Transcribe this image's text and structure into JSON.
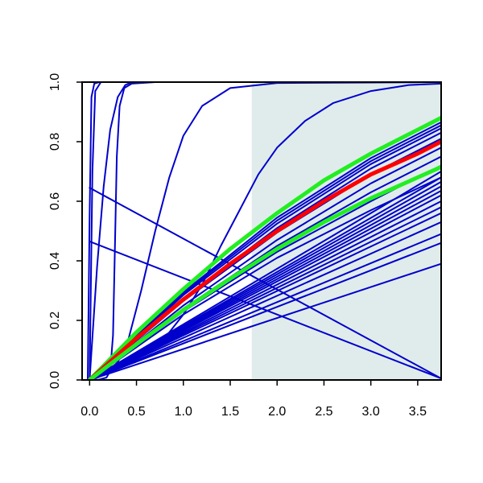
{
  "chart_data": {
    "type": "line",
    "title": "",
    "xlabel": "",
    "ylabel": "",
    "xlim": [
      -0.08,
      3.75
    ],
    "ylim": [
      0,
      1
    ],
    "xticks": [
      0.0,
      0.5,
      1.0,
      1.5,
      2.0,
      2.5,
      3.0,
      3.5
    ],
    "xtick_labels": [
      "0.0",
      "0.5",
      "1.0",
      "1.5",
      "2.0",
      "2.5",
      "3.0",
      "3.5"
    ],
    "yticks": [
      0.0,
      0.2,
      0.4,
      0.6,
      0.8,
      1.0
    ],
    "ytick_labels": [
      "0.0",
      "0.2",
      "0.4",
      "0.6",
      "0.8",
      "1.0"
    ],
    "grid": false,
    "legend": "none",
    "shaded_region": {
      "x_from": 1.73,
      "x_to": 3.75,
      "color": "#e0ecec"
    },
    "colors": {
      "blue": "#0000cc",
      "red": "#ff0000",
      "green": "#22ee22",
      "axis": "#000000"
    },
    "series": [
      {
        "color": "#0000cc",
        "width": 2,
        "points": [
          [
            -0.02,
            0
          ],
          [
            0,
            0.55
          ],
          [
            0.02,
            0.95
          ],
          [
            0.05,
            0.995
          ],
          [
            0.1,
            1.0
          ],
          [
            3.75,
            1.0
          ]
        ]
      },
      {
        "color": "#0000cc",
        "width": 2,
        "points": [
          [
            0,
            0
          ],
          [
            0.03,
            0.7
          ],
          [
            0.06,
            0.97
          ],
          [
            0.12,
            1.0
          ],
          [
            3.75,
            1.0
          ]
        ]
      },
      {
        "color": "#0000cc",
        "width": 2,
        "points": [
          [
            0,
            0
          ],
          [
            0.08,
            0.38
          ],
          [
            0.15,
            0.65
          ],
          [
            0.22,
            0.84
          ],
          [
            0.3,
            0.95
          ],
          [
            0.38,
            0.99
          ],
          [
            0.45,
            1.0
          ],
          [
            3.75,
            1.0
          ]
        ]
      },
      {
        "color": "#0000cc",
        "width": 2,
        "points": [
          [
            0,
            0
          ],
          [
            0.1,
            0.001
          ],
          [
            0.18,
            0.008
          ],
          [
            0.22,
            0.03
          ],
          [
            0.25,
            0.15
          ],
          [
            0.27,
            0.45
          ],
          [
            0.29,
            0.75
          ],
          [
            0.32,
            0.92
          ],
          [
            0.37,
            0.98
          ],
          [
            0.45,
            0.995
          ],
          [
            0.7,
            1.0
          ],
          [
            3.75,
            1.0
          ]
        ]
      },
      {
        "color": "#0000cc",
        "width": 2,
        "points": [
          [
            0,
            0
          ],
          [
            0.1,
            0.01
          ],
          [
            0.2,
            0.03
          ],
          [
            0.3,
            0.06
          ],
          [
            0.4,
            0.12
          ],
          [
            0.55,
            0.3
          ],
          [
            0.7,
            0.5
          ],
          [
            0.85,
            0.68
          ],
          [
            1.0,
            0.82
          ],
          [
            1.2,
            0.92
          ],
          [
            1.5,
            0.98
          ],
          [
            2.0,
            0.997
          ],
          [
            3.75,
            1.0
          ]
        ]
      },
      {
        "color": "#0000cc",
        "width": 2,
        "points": [
          [
            0,
            0
          ],
          [
            0.5,
            0.07
          ],
          [
            0.8,
            0.14
          ],
          [
            1.0,
            0.22
          ],
          [
            1.2,
            0.32
          ],
          [
            1.4,
            0.45
          ],
          [
            1.6,
            0.57
          ],
          [
            1.8,
            0.69
          ],
          [
            2.0,
            0.78
          ],
          [
            2.3,
            0.87
          ],
          [
            2.6,
            0.93
          ],
          [
            3.0,
            0.97
          ],
          [
            3.4,
            0.99
          ],
          [
            3.75,
            0.995
          ]
        ]
      },
      {
        "color": "#0000cc",
        "width": 2,
        "points": [
          [
            0,
            0.645
          ],
          [
            3.75,
            0.005
          ]
        ]
      },
      {
        "color": "#0000cc",
        "width": 2,
        "points": [
          [
            0,
            0.465
          ],
          [
            3.75,
            0.005
          ]
        ]
      },
      {
        "color": "#0000cc",
        "width": 2,
        "points": [
          [
            0,
            0
          ],
          [
            3.75,
            0.39
          ]
        ]
      },
      {
        "color": "#0000cc",
        "width": 2,
        "points": [
          [
            0,
            0
          ],
          [
            3.75,
            0.46
          ]
        ]
      },
      {
        "color": "#0000cc",
        "width": 2,
        "points": [
          [
            0,
            0
          ],
          [
            3.75,
            0.49
          ]
        ]
      },
      {
        "color": "#0000cc",
        "width": 2,
        "points": [
          [
            0,
            0
          ],
          [
            3.75,
            0.53
          ]
        ]
      },
      {
        "color": "#0000cc",
        "width": 2,
        "points": [
          [
            0,
            0
          ],
          [
            3.75,
            0.56
          ]
        ]
      },
      {
        "color": "#0000cc",
        "width": 2,
        "points": [
          [
            0,
            0
          ],
          [
            3.75,
            0.58
          ]
        ]
      },
      {
        "color": "#0000cc",
        "width": 2,
        "points": [
          [
            0,
            0
          ],
          [
            3.75,
            0.6
          ]
        ]
      },
      {
        "color": "#0000cc",
        "width": 2,
        "points": [
          [
            0,
            0
          ],
          [
            3.75,
            0.62
          ]
        ]
      },
      {
        "color": "#0000cc",
        "width": 2,
        "points": [
          [
            0,
            0
          ],
          [
            3.75,
            0.635
          ]
        ]
      },
      {
        "color": "#0000cc",
        "width": 2,
        "points": [
          [
            0,
            0
          ],
          [
            3.75,
            0.65
          ]
        ]
      },
      {
        "color": "#0000cc",
        "width": 2,
        "points": [
          [
            0,
            0
          ],
          [
            3.75,
            0.665
          ]
        ]
      },
      {
        "color": "#0000cc",
        "width": 2,
        "points": [
          [
            0,
            0
          ],
          [
            3.75,
            0.68
          ]
        ]
      },
      {
        "color": "#0000cc",
        "width": 2,
        "points": [
          [
            0,
            0
          ],
          [
            3.75,
            0.7
          ]
        ]
      },
      {
        "color": "#0000cc",
        "width": 2,
        "points": [
          [
            0,
            0
          ],
          [
            1.0,
            0.22
          ],
          [
            2.0,
            0.41
          ],
          [
            3.0,
            0.57
          ],
          [
            3.75,
            0.68
          ]
        ]
      },
      {
        "color": "#0000cc",
        "width": 2,
        "points": [
          [
            0,
            0
          ],
          [
            1.0,
            0.23
          ],
          [
            2.0,
            0.43
          ],
          [
            3.0,
            0.6
          ],
          [
            3.75,
            0.72
          ]
        ]
      },
      {
        "color": "#0000cc",
        "width": 2,
        "points": [
          [
            0,
            0
          ],
          [
            1.0,
            0.24
          ],
          [
            2.0,
            0.45
          ],
          [
            3.0,
            0.63
          ],
          [
            3.75,
            0.75
          ]
        ]
      },
      {
        "color": "#0000cc",
        "width": 2,
        "points": [
          [
            0,
            0
          ],
          [
            1.0,
            0.25
          ],
          [
            2.0,
            0.47
          ],
          [
            3.0,
            0.66
          ],
          [
            3.75,
            0.78
          ]
        ]
      },
      {
        "color": "#0000cc",
        "width": 2,
        "points": [
          [
            0,
            0
          ],
          [
            1.0,
            0.265
          ],
          [
            2.0,
            0.495
          ],
          [
            3.0,
            0.69
          ],
          [
            3.75,
            0.81
          ]
        ]
      },
      {
        "color": "#0000cc",
        "width": 2,
        "points": [
          [
            0,
            0
          ],
          [
            1.0,
            0.275
          ],
          [
            2.0,
            0.51
          ],
          [
            3.0,
            0.71
          ],
          [
            3.75,
            0.83
          ]
        ]
      },
      {
        "color": "#0000cc",
        "width": 2,
        "points": [
          [
            0,
            0
          ],
          [
            1.0,
            0.285
          ],
          [
            2.0,
            0.525
          ],
          [
            3.0,
            0.725
          ],
          [
            3.75,
            0.845
          ]
        ]
      },
      {
        "color": "#0000cc",
        "width": 2,
        "points": [
          [
            0,
            0
          ],
          [
            1.0,
            0.29
          ],
          [
            2.0,
            0.535
          ],
          [
            3.0,
            0.735
          ],
          [
            3.75,
            0.855
          ]
        ]
      },
      {
        "color": "#0000cc",
        "width": 2,
        "points": [
          [
            0,
            0
          ],
          [
            1.0,
            0.295
          ],
          [
            2.0,
            0.545
          ],
          [
            3.0,
            0.745
          ],
          [
            3.75,
            0.865
          ]
        ]
      },
      {
        "color": "#22ee22",
        "width": 5,
        "points": [
          [
            0,
            0
          ],
          [
            0.5,
            0.16
          ],
          [
            1.0,
            0.305
          ],
          [
            1.5,
            0.44
          ],
          [
            2.0,
            0.56
          ],
          [
            2.5,
            0.67
          ],
          [
            3.0,
            0.76
          ],
          [
            3.5,
            0.84
          ],
          [
            3.75,
            0.88
          ]
        ]
      },
      {
        "color": "#ff0000",
        "width": 5,
        "points": [
          [
            0,
            0
          ],
          [
            0.5,
            0.14
          ],
          [
            1.0,
            0.27
          ],
          [
            1.5,
            0.39
          ],
          [
            2.0,
            0.5
          ],
          [
            2.5,
            0.6
          ],
          [
            3.0,
            0.69
          ],
          [
            3.5,
            0.76
          ],
          [
            3.75,
            0.8
          ]
        ]
      },
      {
        "color": "#22ee22",
        "width": 5,
        "points": [
          [
            0,
            0
          ],
          [
            0.5,
            0.12
          ],
          [
            1.0,
            0.235
          ],
          [
            1.5,
            0.34
          ],
          [
            2.0,
            0.44
          ],
          [
            2.5,
            0.53
          ],
          [
            3.0,
            0.61
          ],
          [
            3.5,
            0.68
          ],
          [
            3.75,
            0.715
          ]
        ]
      }
    ]
  }
}
